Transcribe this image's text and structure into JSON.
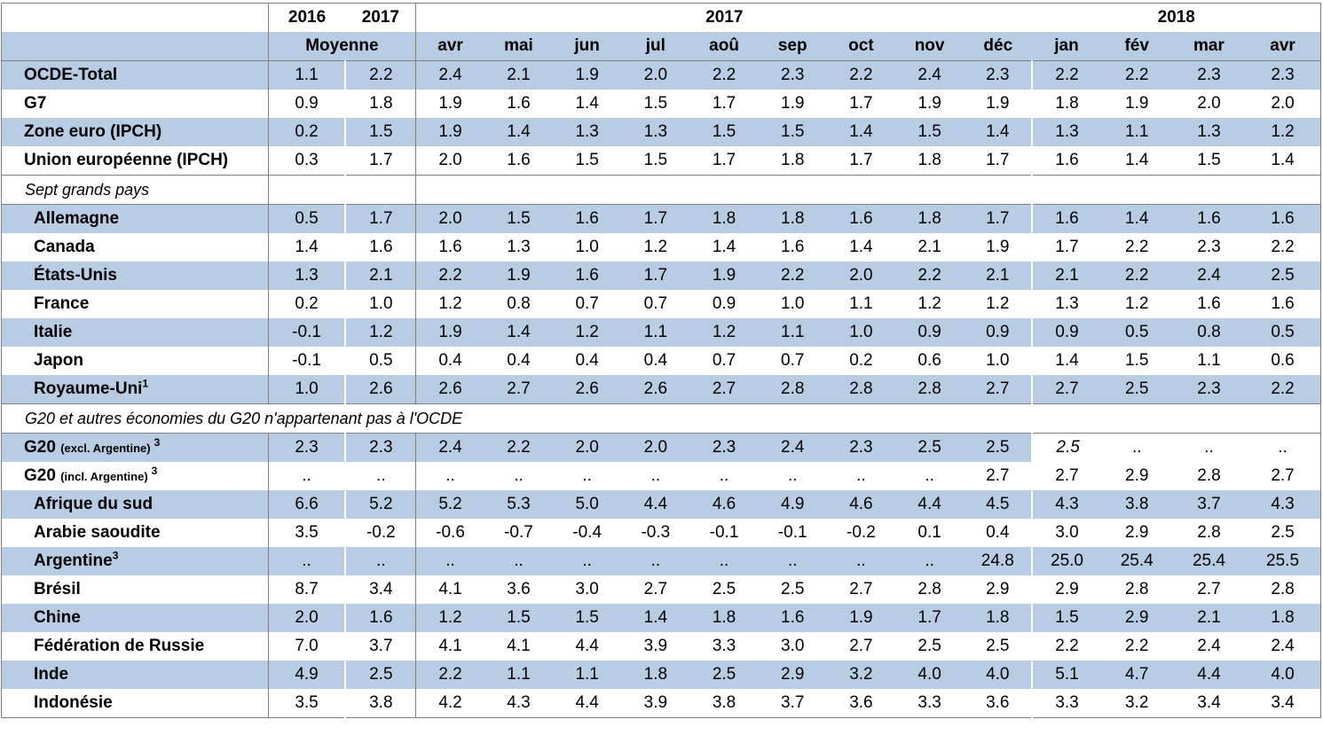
{
  "header": {
    "years_avg": [
      "2016",
      "2017"
    ],
    "group_2017": "2017",
    "group_2018": "2018",
    "avg_label": "Moyenne",
    "months": [
      "avr",
      "mai",
      "jun",
      "jul",
      "aoû",
      "sep",
      "oct",
      "nov",
      "déc",
      "jan",
      "fév",
      "mar",
      "avr"
    ]
  },
  "sections": [
    {
      "title": "",
      "rows": [
        {
          "label": "OCDE-Total",
          "values": [
            "1.1",
            "2.2",
            "2.4",
            "2.1",
            "1.9",
            "2.0",
            "2.2",
            "2.3",
            "2.2",
            "2.4",
            "2.3",
            "2.2",
            "2.2",
            "2.3",
            "2.3"
          ]
        },
        {
          "label": "G7",
          "values": [
            "0.9",
            "1.8",
            "1.9",
            "1.6",
            "1.4",
            "1.5",
            "1.7",
            "1.9",
            "1.7",
            "1.9",
            "1.9",
            "1.8",
            "1.9",
            "2.0",
            "2.0"
          ]
        },
        {
          "label": "Zone euro (IPCH)",
          "values": [
            "0.2",
            "1.5",
            "1.9",
            "1.4",
            "1.3",
            "1.3",
            "1.5",
            "1.5",
            "1.4",
            "1.5",
            "1.4",
            "1.3",
            "1.1",
            "1.3",
            "1.2"
          ]
        },
        {
          "label": "Union européenne (IPCH)",
          "values": [
            "0.3",
            "1.7",
            "2.0",
            "1.6",
            "1.5",
            "1.5",
            "1.7",
            "1.8",
            "1.7",
            "1.8",
            "1.7",
            "1.6",
            "1.4",
            "1.5",
            "1.4"
          ]
        }
      ]
    },
    {
      "title": "Sept grands pays",
      "rows": [
        {
          "label": "Allemagne",
          "values": [
            "0.5",
            "1.7",
            "2.0",
            "1.5",
            "1.6",
            "1.7",
            "1.8",
            "1.8",
            "1.6",
            "1.8",
            "1.7",
            "1.6",
            "1.4",
            "1.6",
            "1.6"
          ]
        },
        {
          "label": "Canada",
          "values": [
            "1.4",
            "1.6",
            "1.6",
            "1.3",
            "1.0",
            "1.2",
            "1.4",
            "1.6",
            "1.4",
            "2.1",
            "1.9",
            "1.7",
            "2.2",
            "2.3",
            "2.2"
          ]
        },
        {
          "label": "États-Unis",
          "values": [
            "1.3",
            "2.1",
            "2.2",
            "1.9",
            "1.6",
            "1.7",
            "1.9",
            "2.2",
            "2.0",
            "2.2",
            "2.1",
            "2.1",
            "2.2",
            "2.4",
            "2.5"
          ]
        },
        {
          "label": "France",
          "values": [
            "0.2",
            "1.0",
            "1.2",
            "0.8",
            "0.7",
            "0.7",
            "0.9",
            "1.0",
            "1.1",
            "1.2",
            "1.2",
            "1.3",
            "1.2",
            "1.6",
            "1.6"
          ]
        },
        {
          "label": "Italie",
          "values": [
            "-0.1",
            "1.2",
            "1.9",
            "1.4",
            "1.2",
            "1.1",
            "1.2",
            "1.1",
            "1.0",
            "0.9",
            "0.9",
            "0.9",
            "0.5",
            "0.8",
            "0.5"
          ]
        },
        {
          "label": "Japon",
          "values": [
            "-0.1",
            "0.5",
            "0.4",
            "0.4",
            "0.4",
            "0.4",
            "0.7",
            "0.7",
            "0.2",
            "0.6",
            "1.0",
            "1.4",
            "1.5",
            "1.1",
            "0.6"
          ]
        },
        {
          "label": "Royaume-Uni",
          "sup": "1",
          "values": [
            "1.0",
            "2.6",
            "2.6",
            "2.7",
            "2.6",
            "2.6",
            "2.7",
            "2.8",
            "2.8",
            "2.8",
            "2.7",
            "2.7",
            "2.5",
            "2.3",
            "2.2"
          ]
        }
      ]
    },
    {
      "title": "G20 et autres économies du G20 n'appartenant pas à l'OCDE",
      "rows": [
        {
          "label": "G20",
          "extra": "(excl. Argentine)",
          "sup": "3",
          "values": [
            "2.3",
            "2.3",
            "2.4",
            "2.2",
            "2.0",
            "2.0",
            "2.3",
            "2.4",
            "2.3",
            "2.5",
            "2.5",
            "2.5",
            "..",
            "..",
            ".."
          ]
        },
        {
          "label": "G20",
          "extra": "(incl. Argentine)",
          "sup": "3",
          "values": [
            "..",
            "..",
            "..",
            "..",
            "..",
            "..",
            "..",
            "..",
            "..",
            "..",
            "2.7",
            "2.7",
            "2.9",
            "2.8",
            "2.7"
          ]
        },
        {
          "label": "Afrique du sud",
          "values": [
            "6.6",
            "5.2",
            "5.2",
            "5.3",
            "5.0",
            "4.4",
            "4.6",
            "4.9",
            "4.6",
            "4.4",
            "4.5",
            "4.3",
            "3.8",
            "3.7",
            "4.3"
          ]
        },
        {
          "label": "Arabie saoudite",
          "values": [
            "3.5",
            "-0.2",
            "-0.6",
            "-0.7",
            "-0.4",
            "-0.3",
            "-0.1",
            "-0.1",
            "-0.2",
            "0.1",
            "0.4",
            "3.0",
            "2.9",
            "2.8",
            "2.5"
          ]
        },
        {
          "label": "Argentine",
          "sup": "3",
          "values": [
            "..",
            "..",
            "..",
            "..",
            "..",
            "..",
            "..",
            "..",
            "..",
            "..",
            "24.8",
            "25.0",
            "25.4",
            "25.4",
            "25.5"
          ]
        },
        {
          "label": "Brésil",
          "values": [
            "8.7",
            "3.4",
            "4.1",
            "3.6",
            "3.0",
            "2.7",
            "2.5",
            "2.5",
            "2.7",
            "2.8",
            "2.9",
            "2.9",
            "2.8",
            "2.7",
            "2.8"
          ]
        },
        {
          "label": "Chine",
          "values": [
            "2.0",
            "1.6",
            "1.2",
            "1.5",
            "1.5",
            "1.4",
            "1.8",
            "1.6",
            "1.9",
            "1.7",
            "1.8",
            "1.5",
            "2.9",
            "2.1",
            "1.8"
          ]
        },
        {
          "label": "Fédération de Russie",
          "values": [
            "7.0",
            "3.7",
            "4.1",
            "4.1",
            "4.4",
            "3.9",
            "3.3",
            "3.0",
            "2.7",
            "2.5",
            "2.5",
            "2.2",
            "2.2",
            "2.4",
            "2.4"
          ]
        },
        {
          "label": "Inde",
          "values": [
            "4.9",
            "2.5",
            "2.2",
            "1.1",
            "1.1",
            "1.8",
            "2.5",
            "2.9",
            "3.2",
            "4.0",
            "4.0",
            "5.1",
            "4.7",
            "4.4",
            "4.0"
          ]
        },
        {
          "label": "Indonésie",
          "values": [
            "3.5",
            "3.8",
            "4.2",
            "4.3",
            "4.4",
            "3.9",
            "3.8",
            "3.7",
            "3.6",
            "3.3",
            "3.6",
            "3.3",
            "3.2",
            "3.4",
            "3.4"
          ]
        }
      ]
    }
  ],
  "colors": {
    "band": "#b8cce4",
    "rule": "#7f7f7f",
    "background": "#ffffff"
  }
}
